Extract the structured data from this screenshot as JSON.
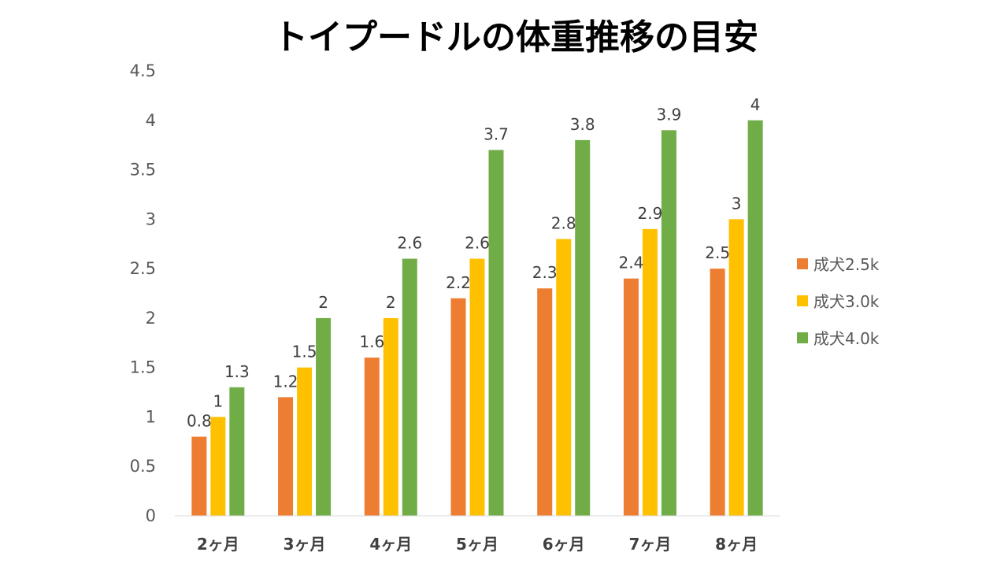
{
  "chart_data": {
    "type": "bar",
    "title": "トイプードルの体重推移の目安",
    "categories": [
      "2ヶ月",
      "3ヶ月",
      "4ヶ月",
      "5ヶ月",
      "6ヶ月",
      "7ヶ月",
      "8ヶ月"
    ],
    "series": [
      {
        "name": "成犬2.5k",
        "color": "#ED7D31",
        "values": [
          0.8,
          1.2,
          1.6,
          2.2,
          2.3,
          2.4,
          2.5
        ]
      },
      {
        "name": "成犬3.0k",
        "color": "#FFC000",
        "values": [
          1,
          1.5,
          2,
          2.6,
          2.8,
          2.9,
          3
        ]
      },
      {
        "name": "成犬4.0k",
        "color": "#70AD47",
        "values": [
          1.3,
          2,
          2.6,
          3.7,
          3.8,
          3.9,
          4
        ]
      }
    ],
    "yticks": [
      "0",
      "0.5",
      "1",
      "1.5",
      "2",
      "2.5",
      "3",
      "3.5",
      "4",
      "4.5"
    ],
    "ylim": [
      0,
      4.5
    ],
    "grid": false,
    "legend_position": "right"
  }
}
